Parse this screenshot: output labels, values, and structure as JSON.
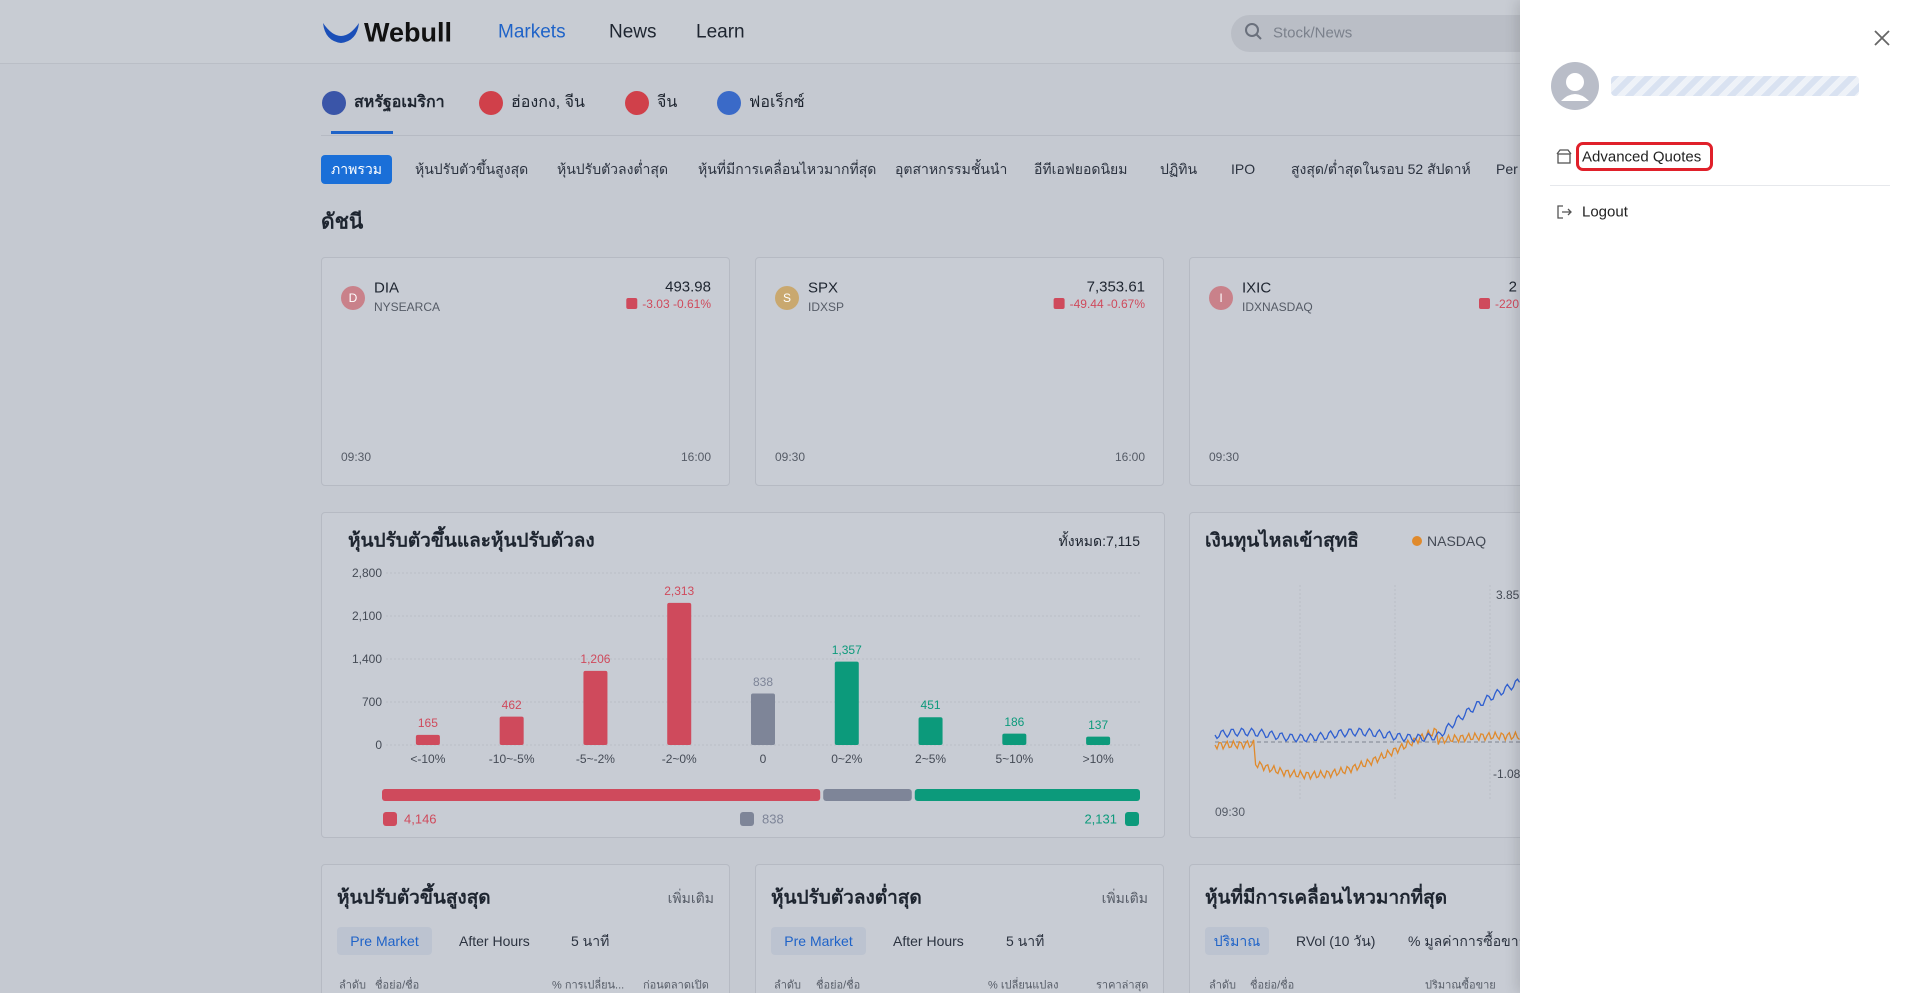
{
  "header": {
    "logo": "Webull",
    "nav": [
      "Markets",
      "News",
      "Learn"
    ],
    "search_placeholder": "Stock/News"
  },
  "regions": [
    "สหรัฐอเมริกา",
    "ฮ่องกง, จีน",
    "จีน",
    "ฟอเร็กซ์"
  ],
  "subtabs": [
    "ภาพรวม",
    "หุ้นปรับตัวขึ้นสูงสุด",
    "หุ้นปรับตัวลงต่ำสุด",
    "หุ้นที่มีการเคลื่อนไหวมากที่สุด",
    "อุตสาหกรรมชั้นนำ",
    "อีทีเอฟยอดนิยม",
    "ปฏิทิน",
    "IPO",
    "สูงสุด/ต่ำสุดในรอบ 52 สัปดาห์",
    "Per"
  ],
  "indices_title": "ดัชนี",
  "indices": [
    {
      "icon": "D",
      "symbol": "DIA",
      "exchange": "NYSEARCA",
      "price": "493.98",
      "change": "-3.03 -0.61%",
      "start": "09:30",
      "end": "16:00"
    },
    {
      "icon": "S",
      "symbol": "SPX",
      "exchange": "IDXSP",
      "price": "7,353.61",
      "change": "-49.44 -0.67%",
      "start": "09:30",
      "end": "16:00"
    },
    {
      "icon": "I",
      "symbol": "IXIC",
      "exchange": "IDXNASDAQ",
      "price": "2",
      "change": "-220",
      "start": "09:30"
    }
  ],
  "advancers": {
    "title": "หุ้นปรับตัวขึ้นและหุ้นปรับตัวลง",
    "total": "ทั้งหมด:7,115",
    "chart": {
      "type": "bar",
      "categories": [
        "<-10%",
        "-10~-5%",
        "-5~-2%",
        "-2~0%",
        "0",
        "0~2%",
        "2~5%",
        "5~10%",
        ">10%"
      ],
      "values": [
        165,
        462,
        1206,
        2313,
        838,
        1357,
        451,
        186,
        137
      ],
      "value_labels": [
        "165",
        "462",
        "1,206",
        "2,313",
        "838",
        "1,357",
        "451",
        "186",
        "137"
      ],
      "colors": [
        "#cf4a5c",
        "#cf4a5c",
        "#cf4a5c",
        "#cf4a5c",
        "#7e8598",
        "#0c9a7b",
        "#0c9a7b",
        "#0c9a7b",
        "#0c9a7b"
      ],
      "ylim": [
        0,
        2800
      ],
      "yticks": [
        0,
        700,
        {
          "value": 1400,
          "label": "1,400"
        },
        {
          "value": 2100,
          "label": "2,100"
        },
        {
          "value": 2800,
          "label": "2,800"
        }
      ],
      "grid": true
    },
    "breakdown": [
      {
        "value": 4146,
        "label": "4,146",
        "color": "#cf4a5c"
      },
      {
        "value": 838,
        "label": "838",
        "color": "#7e8598"
      },
      {
        "value": 2131,
        "label": "2,131",
        "color": "#0c9a7b"
      }
    ]
  },
  "net_inflow": {
    "title": "เงินทุนไหลเข้าสุทธิ",
    "legend": "NASDAQ",
    "y_top": "3.85",
    "y_bottom": "-1.08",
    "start": "09:30"
  },
  "lists": [
    {
      "title": "หุ้นปรับตัวขึ้นสูงสุด",
      "more": "เพิ่มเติม",
      "tabs": [
        "Pre Market",
        "After Hours",
        "5 นาที"
      ],
      "columns": [
        "ลำดับ",
        "ชื่อย่อ/ชื่อ",
        "% การเปลี่ยน...",
        "ก่อนตลาดเปิด"
      ]
    },
    {
      "title": "หุ้นปรับตัวลงต่ำสุด",
      "more": "เพิ่มเติม",
      "tabs": [
        "Pre Market",
        "After Hours",
        "5 นาที"
      ],
      "columns": [
        "ลำดับ",
        "ชื่อย่อ/ชื่อ",
        "% เปลี่ยนแปลง",
        "ราคาล่าสุด"
      ]
    },
    {
      "title": "หุ้นที่มีการเคลื่อนไหวมากที่สุด",
      "tabs": [
        "ปริมาณ",
        "RVol (10 วัน)",
        "% มูลค่าการซื้อขาย"
      ],
      "columns": [
        "ลำดับ",
        "ชื่อย่อ/ชื่อ",
        "ปริมาณซื้อขาย"
      ]
    }
  ],
  "panel": {
    "menu": [
      "Advanced Quotes",
      "Logout"
    ]
  }
}
